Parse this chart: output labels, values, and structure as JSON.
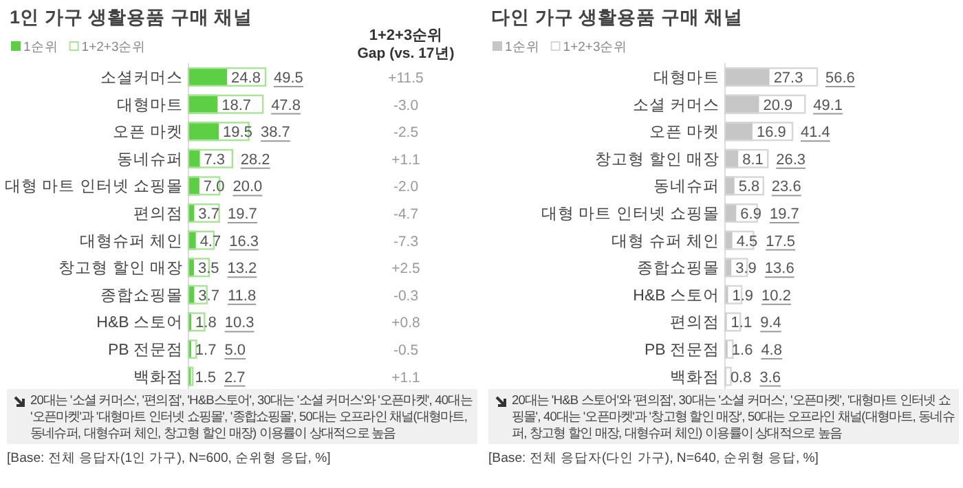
{
  "chart_data": [
    {
      "type": "bar",
      "orientation": "horizontal",
      "title": "1인 가구 생활용품 구매 채널",
      "legend": "top left",
      "y2label": "1+2+3순위\nGap (vs. 17년)",
      "categories": [
        "소셜커머스",
        "대형마트",
        "오픈 마켓",
        "동네슈퍼",
        "대형 마트 인터넷 쇼핑몰",
        "편의점",
        "대형슈퍼 체인",
        "창고형 할인 매장",
        "종합쇼핑몰",
        "H&B 스토어",
        "PB 전문점",
        "백화점"
      ],
      "series": [
        {
          "name": "1순위",
          "color": "#5ccf45",
          "values": [
            24.8,
            18.7,
            19.5,
            7.3,
            7.0,
            3.7,
            4.7,
            3.5,
            3.7,
            1.8,
            1.7,
            1.5
          ],
          "value_labels": [
            "24.8",
            "18.7",
            "19.5",
            "7.3",
            "7.0",
            "3.7",
            "4.7",
            "3.5",
            "3.7",
            "1.8",
            "1.7",
            "1.5"
          ]
        },
        {
          "name": "1+2+3순위",
          "color": "#a6e596",
          "values": [
            49.5,
            47.8,
            38.7,
            28.2,
            20.0,
            19.7,
            16.3,
            13.2,
            11.8,
            10.3,
            5.0,
            2.7
          ],
          "value_labels": [
            "49.5",
            "47.8",
            "38.7",
            "28.2",
            "20.0",
            "19.7",
            "16.3",
            "13.2",
            "11.8",
            "10.3",
            "5.0",
            "2.7"
          ]
        }
      ],
      "annotations": [
        "+11.5",
        "-3.0",
        "-2.5",
        "+1.1",
        "-2.0",
        "-4.7",
        "-7.3",
        "+2.5",
        "-0.3",
        "+0.8",
        "-0.5",
        "+1.1",
        "20대는 '소셜 커머스', '편의점', 'H&B스토어', 30대는 '소셜 커머스'와 '오픈마켓', 40대는 '오픈마켓'과 '대형마트 인터넷 쇼핑몰', '종합쇼핑몰', 50대는 오프라인 채널(대형마트, 동네슈퍼, 대형슈퍼 체인, 창고형 할인 매장) 이용률이 상대적으로 높음",
        "[Base: 전체 응답자(1인 가구), N=600, 순위형 응답, %]"
      ]
    },
    {
      "type": "bar",
      "orientation": "horizontal",
      "title": "다인 가구 생활용품 구매 채널",
      "legend": "top left",
      "categories": [
        "대형마트",
        "소셜 커머스",
        "오픈 마켓",
        "창고형 할인 매장",
        "동네슈퍼",
        "대형 마트 인터넷 쇼핑몰",
        "대형 슈퍼 체인",
        "종합쇼핑몰",
        "H&B 스토어",
        "편의점",
        "PB 전문점",
        "백화점"
      ],
      "series": [
        {
          "name": "1순위",
          "color": "#c6c6c6",
          "values": [
            27.3,
            20.9,
            16.9,
            8.1,
            5.8,
            6.9,
            4.5,
            3.9,
            1.9,
            1.1,
            1.6,
            0.8
          ],
          "value_labels": [
            "27.3",
            "20.9",
            "16.9",
            "8.1",
            "5.8",
            "6.9",
            "4.5",
            "3.9",
            "1.9",
            "1.1",
            "1.6",
            "0.8"
          ]
        },
        {
          "name": "1+2+3순위",
          "color": "#d6d6d6",
          "values": [
            56.6,
            49.1,
            41.4,
            26.3,
            23.6,
            19.7,
            17.5,
            13.6,
            10.2,
            9.4,
            4.8,
            3.6
          ],
          "value_labels": [
            "56.6",
            "49.1",
            "41.4",
            "26.3",
            "23.6",
            "19.7",
            "17.5",
            "13.6",
            "10.2",
            "9.4",
            "4.8",
            "3.6"
          ]
        }
      ],
      "annotations": [
        "20대는 'H&B 스토어'와 '편의점', 30대는 '소셜 커머스', '오픈마켓', '대형마트 인터넷 쇼핑몰', 40대는 '오픈마켓'과 '창고형 할인 매장', 50대는 오프라인 채널(대형마트, 동네슈퍼, 창고형 할인 매장, 대형슈퍼 체인) 이용률이 상대적으로 높음",
        "[Base: 전체 응답자(다인 가구), N=640, 순위형 응답, %]"
      ]
    }
  ]
}
